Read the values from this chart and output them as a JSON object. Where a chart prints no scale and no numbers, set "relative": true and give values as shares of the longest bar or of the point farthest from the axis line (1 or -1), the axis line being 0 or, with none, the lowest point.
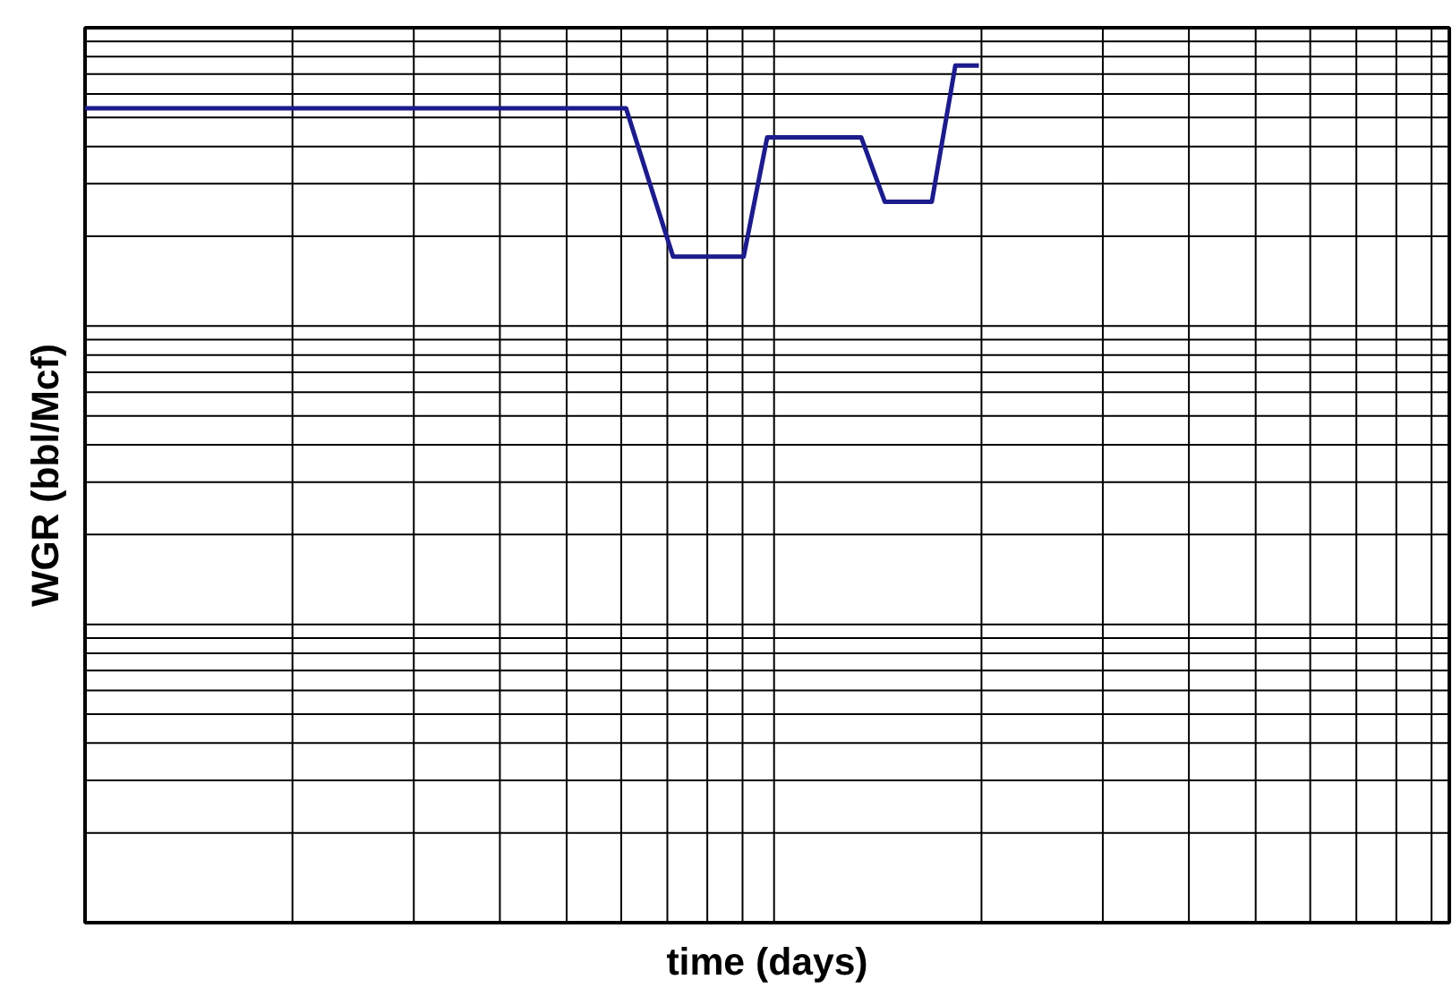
{
  "chart_data": {
    "type": "line",
    "xlabel": "time (days)",
    "ylabel": "WGR (bbl/Mcf)",
    "relative": true,
    "grid": true,
    "marker": "none",
    "line_style": "solid",
    "categories": [
      null,
      null,
      null,
      null,
      null,
      null,
      null,
      null,
      null,
      null,
      null,
      null,
      null,
      null,
      null,
      null,
      null,
      null,
      null,
      null,
      null,
      null,
      null,
      null,
      null,
      null,
      null,
      null,
      null,
      null,
      null,
      null,
      null,
      null,
      null,
      null,
      null,
      null,
      null,
      null,
      null,
      null,
      null,
      null,
      null,
      null,
      null,
      null,
      null,
      null,
      null,
      null,
      null,
      null,
      null,
      null,
      null,
      null,
      null
    ],
    "series": [
      {
        "color": "#1c1c8c",
        "values": [
          0.95,
          0.95,
          0.95,
          0.95,
          0.95,
          0.95,
          0.95,
          0.95,
          0.95,
          0.95,
          0.95,
          0.95,
          0.95,
          0.95,
          0.95,
          0.95,
          0.95,
          0.95,
          0.95,
          0.95,
          0.95,
          0.95,
          0.95,
          0.95,
          0.863,
          0.777,
          0.777,
          0.777,
          0.777,
          0.916,
          0.916,
          0.916,
          0.916,
          0.916,
          0.841,
          0.841,
          0.841,
          1.0,
          1.0,
          null,
          null,
          null,
          null,
          null,
          null,
          null,
          null,
          null,
          null,
          null,
          null,
          null,
          null,
          null,
          null,
          null,
          null,
          null,
          null
        ]
      }
    ]
  }
}
